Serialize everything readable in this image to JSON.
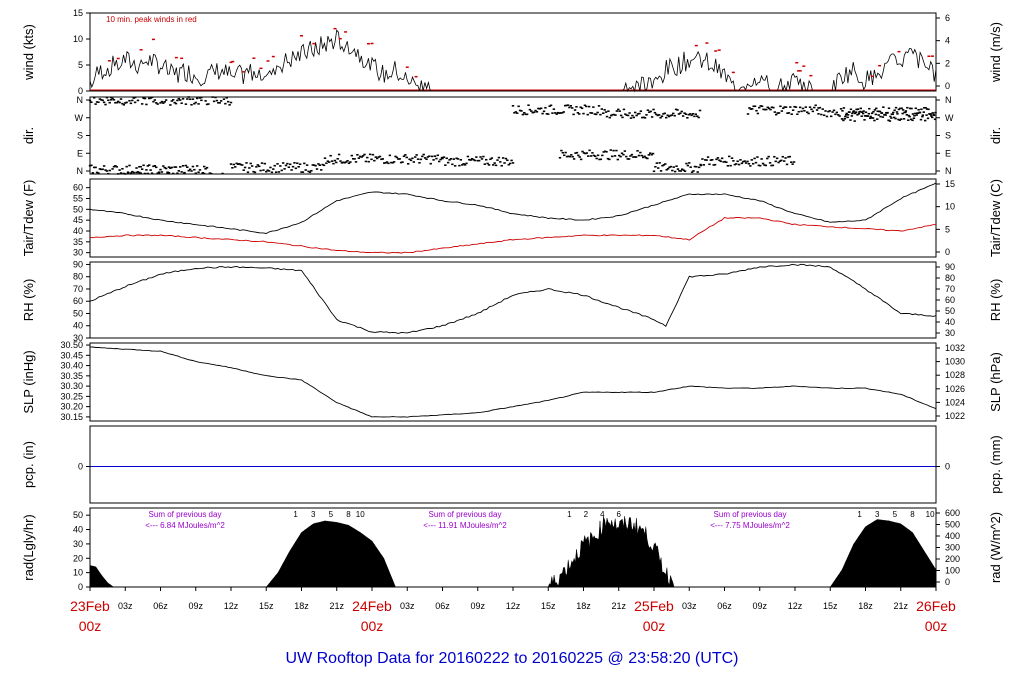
{
  "footer": {
    "title": "UW Rooftop Data for 20160222  to  20160225 @ 23:58:20  (UTC)"
  },
  "colors": {
    "red": "#cc0000",
    "black": "#000000",
    "blue": "#0000cc",
    "purple": "#9900cc"
  },
  "time_axis": {
    "hour_labels": [
      "03z",
      "06z",
      "09z",
      "12z",
      "15z",
      "18z",
      "21z"
    ],
    "day_labels": [
      "23Feb",
      "24Feb",
      "25Feb",
      "26Feb"
    ],
    "day_sub": "00z",
    "range_hours": [
      0,
      72
    ]
  },
  "chart_data": [
    {
      "type": "line",
      "ylabel_left": "wind (kts)",
      "ylabel_right": "wind (m/s)",
      "left_ticks": [
        "15",
        "10",
        "5",
        "0"
      ],
      "right_ticks": [
        "6",
        "4",
        "2",
        "0"
      ],
      "ylim": [
        0,
        15
      ],
      "annotation": "10 min. peak winds in red",
      "series": [
        {
          "x": [
            0,
            1,
            2,
            3,
            4,
            5,
            6,
            7,
            8,
            9,
            10,
            11,
            12,
            13,
            14,
            15,
            16,
            17,
            18,
            19,
            20,
            21,
            22,
            23,
            24,
            25,
            26,
            27,
            28,
            30,
            36,
            42,
            48,
            49,
            50,
            51,
            52,
            53,
            54,
            55,
            56,
            57,
            58,
            60,
            62,
            63,
            64,
            65,
            66,
            67,
            68,
            69,
            70,
            71,
            72
          ],
          "values": [
            2,
            4,
            5,
            6,
            5,
            6,
            5,
            3,
            4,
            3,
            3,
            4,
            3,
            3,
            4,
            4,
            5,
            6,
            7,
            8,
            9,
            10,
            9,
            7,
            5,
            3,
            4,
            2,
            1,
            0,
            0,
            0,
            1,
            4,
            5,
            6,
            6,
            5,
            3,
            0,
            2,
            3,
            0,
            2,
            0,
            0,
            3,
            4,
            2,
            3,
            5,
            6,
            7,
            5,
            3
          ]
        }
      ]
    },
    {
      "type": "scatter",
      "ylabel_left": "dir.",
      "ylabel_right": "dir.",
      "left_ticks": [
        "N",
        "W",
        "S",
        "E",
        "N"
      ],
      "right_ticks": [
        "N",
        "W",
        "S",
        "E",
        "N"
      ],
      "ylim": [
        0,
        360
      ]
    },
    {
      "type": "line",
      "ylabel_left": "Tair/Tdew (F)",
      "ylabel_right": "Tair/Tdew (C)",
      "left_ticks": [
        "60",
        "55",
        "50",
        "45",
        "40",
        "35",
        "30"
      ],
      "right_ticks": [
        "15",
        "10",
        "5",
        "0"
      ],
      "ylim": [
        28,
        64
      ],
      "series": [
        {
          "x": [
            0,
            3,
            6,
            9,
            12,
            15,
            18,
            21,
            24,
            27,
            30,
            33,
            36,
            39,
            42,
            45,
            48,
            51,
            54,
            57,
            60,
            63,
            66,
            69,
            72
          ],
          "values": [
            50,
            48,
            45,
            43,
            41,
            39,
            44,
            54,
            58,
            57,
            54,
            52,
            48,
            46,
            45,
            47,
            52,
            57,
            57,
            54,
            48,
            44,
            45,
            55,
            62
          ]
        },
        {
          "x": [
            0,
            3,
            6,
            9,
            12,
            15,
            18,
            21,
            24,
            27,
            30,
            33,
            36,
            39,
            42,
            45,
            48,
            51,
            54,
            57,
            60,
            63,
            66,
            69,
            72
          ],
          "values": [
            37,
            38,
            38,
            37,
            36,
            35,
            33,
            31,
            30,
            30,
            32,
            34,
            36,
            37,
            38,
            38,
            38,
            36,
            46,
            46,
            43,
            42,
            41,
            40,
            43
          ]
        }
      ]
    },
    {
      "type": "line",
      "ylabel_left": "RH (%)",
      "ylabel_right": "RH (%)",
      "left_ticks": [
        "90",
        "80",
        "70",
        "60",
        "50",
        "40",
        "30"
      ],
      "right_ticks": [
        "90",
        "80",
        "70",
        "60",
        "50",
        "40",
        "30"
      ],
      "ylim": [
        30,
        92
      ],
      "series": [
        {
          "x": [
            0,
            3,
            6,
            9,
            12,
            15,
            18,
            21,
            24,
            27,
            30,
            33,
            36,
            39,
            42,
            45,
            48,
            49,
            51,
            54,
            57,
            60,
            63,
            66,
            69,
            72
          ],
          "values": [
            60,
            72,
            82,
            87,
            88,
            87,
            85,
            45,
            35,
            34,
            40,
            50,
            65,
            70,
            65,
            55,
            45,
            40,
            80,
            82,
            88,
            90,
            88,
            70,
            50,
            48
          ]
        }
      ]
    },
    {
      "type": "line",
      "ylabel_left": "SLP (inHg)",
      "ylabel_right": "SLP (hPa)",
      "left_ticks": [
        "30.50",
        "30.45",
        "30.40",
        "30.35",
        "30.30",
        "30.25",
        "30.20",
        "30.15"
      ],
      "right_ticks": [
        "1032",
        "1030",
        "1028",
        "1026",
        "1024",
        "1022"
      ],
      "ylim": [
        30.13,
        30.51
      ],
      "series": [
        {
          "x": [
            0,
            3,
            6,
            9,
            12,
            15,
            18,
            21,
            24,
            27,
            30,
            33,
            36,
            39,
            42,
            45,
            48,
            51,
            54,
            57,
            60,
            63,
            66,
            69,
            72
          ],
          "values": [
            30.49,
            30.48,
            30.47,
            30.42,
            30.39,
            30.35,
            30.33,
            30.22,
            30.15,
            30.15,
            30.16,
            30.17,
            30.2,
            30.23,
            30.27,
            30.27,
            30.27,
            30.3,
            30.29,
            30.29,
            30.3,
            30.29,
            30.29,
            30.26,
            30.19
          ]
        }
      ]
    },
    {
      "type": "line",
      "ylabel_left": "pcp. (in)",
      "ylabel_right": "pcp. (mm)",
      "left_ticks": [
        "0"
      ],
      "right_ticks": [
        "0"
      ],
      "ylim": [
        -1,
        1
      ],
      "series": [
        {
          "x": [
            0,
            72
          ],
          "values": [
            0,
            0
          ]
        }
      ]
    },
    {
      "type": "area",
      "ylabel_left": "rad(Lgly/hr)",
      "ylabel_right": "rad (W/m^2)",
      "left_ticks": [
        "50",
        "40",
        "30",
        "20",
        "10",
        "0"
      ],
      "right_ticks": [
        "600",
        "500",
        "400",
        "300",
        "200",
        "100",
        "0"
      ],
      "ylim": [
        0,
        55
      ],
      "hour_marks": [
        "1",
        "3",
        "5",
        "8",
        "10",
        "1",
        "2",
        "4",
        "6",
        "1",
        "3",
        "5",
        "8",
        "10"
      ],
      "annotations": [
        {
          "line1": "Sum of previous day",
          "line2": "<--- 6.84 MJoules/m^2"
        },
        {
          "line1": "Sum of previous day",
          "line2": "<--- 11.91 MJoules/m^2"
        },
        {
          "line1": "Sum of previous day",
          "line2": "<--- 7.75 MJoules/m^2"
        }
      ],
      "series": [
        {
          "x": [
            0,
            0.5,
            1,
            1.5,
            2,
            15,
            16,
            17,
            18,
            19,
            20,
            21,
            22,
            23,
            24,
            25,
            26,
            39,
            40,
            41,
            42,
            43,
            44,
            45,
            46,
            47,
            48,
            49,
            50,
            63,
            64,
            65,
            66,
            67,
            68,
            69,
            70,
            71,
            72
          ],
          "values": [
            15,
            14,
            8,
            3,
            0,
            0,
            10,
            25,
            38,
            44,
            46,
            45,
            43,
            38,
            32,
            20,
            0,
            0,
            8,
            18,
            30,
            35,
            48,
            42,
            45,
            40,
            28,
            10,
            0,
            0,
            12,
            30,
            42,
            47,
            46,
            44,
            38,
            25,
            12
          ]
        }
      ]
    }
  ]
}
